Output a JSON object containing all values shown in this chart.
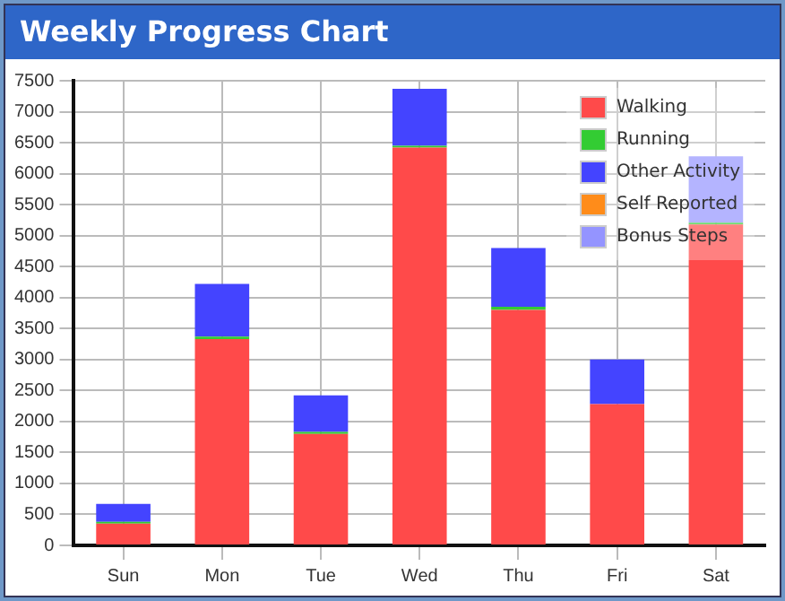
{
  "chart_data": {
    "type": "bar",
    "title": "Weekly Progress Chart",
    "stacked": true,
    "grid": true,
    "legend": "top right",
    "categories": [
      "Sun",
      "Mon",
      "Tue",
      "Wed",
      "Thu",
      "Fri",
      "Sat"
    ],
    "ylim": [
      0,
      7500
    ],
    "yticks": [
      0,
      500,
      1000,
      1500,
      2000,
      2500,
      3000,
      3500,
      4000,
      4500,
      5000,
      5500,
      6000,
      6500,
      7000,
      7500
    ],
    "series": [
      {
        "name": "Walking",
        "color": "#ff4a4a",
        "values": [
          350,
          3330,
          1800,
          6420,
          3800,
          2280,
          5180
        ]
      },
      {
        "name": "Running",
        "color": "#33cc33",
        "values": [
          30,
          40,
          30,
          30,
          50,
          0,
          30
        ]
      },
      {
        "name": "Other Activity",
        "color": "#4444ff",
        "values": [
          290,
          850,
          590,
          920,
          950,
          720,
          0
        ]
      },
      {
        "name": "Self Reported",
        "color": "#ff8c1a",
        "values": [
          0,
          0,
          0,
          0,
          0,
          0,
          0
        ]
      },
      {
        "name": "Bonus Steps",
        "color": "#9494ff",
        "values": [
          0,
          0,
          0,
          0,
          0,
          0,
          1070
        ]
      }
    ]
  }
}
